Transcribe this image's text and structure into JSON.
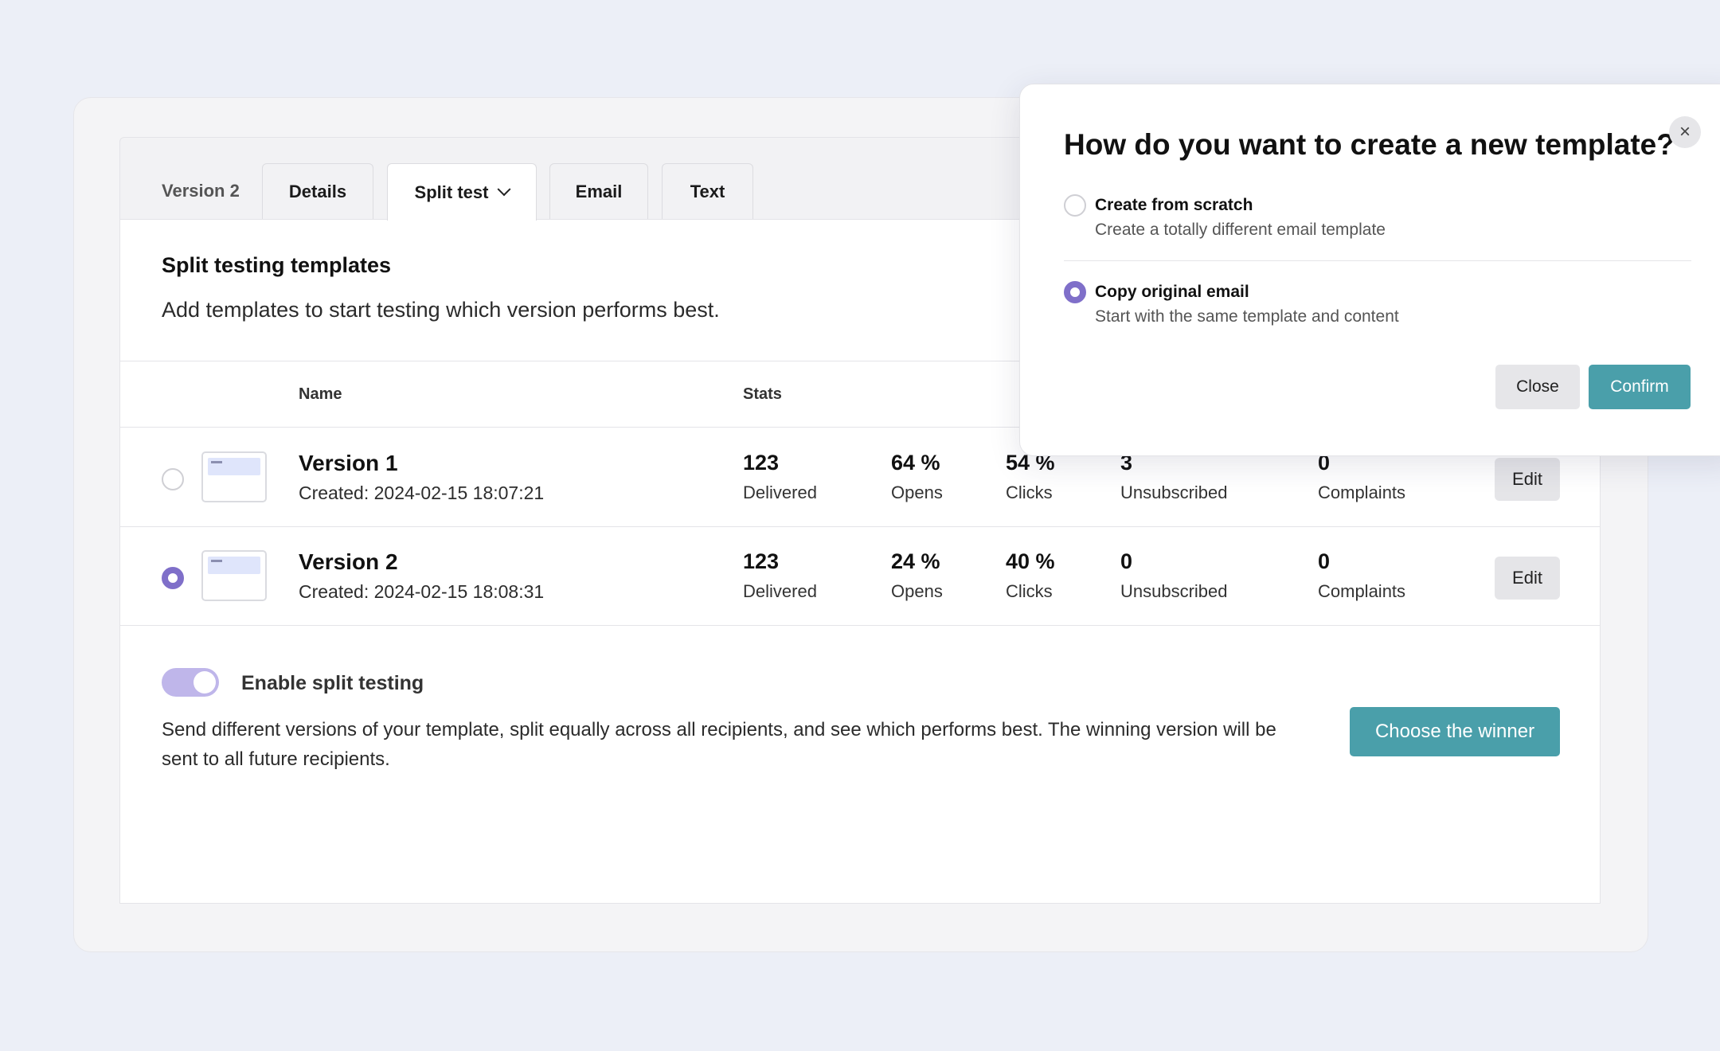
{
  "tabs": {
    "version": "Version 2",
    "details": "Details",
    "split_test": "Split test",
    "email": "Email",
    "text": "Text"
  },
  "card": {
    "title": "Split testing templates",
    "subtitle": "Add templates to start testing which version performs best."
  },
  "table": {
    "headers": {
      "name": "Name",
      "stats": "Stats"
    },
    "rows": [
      {
        "name": "Version 1",
        "created": "Created: 2024-02-15 18:07:21",
        "selected": false,
        "delivered": "123",
        "delivered_label": "Delivered",
        "opens": "64 %",
        "opens_label": "Opens",
        "clicks": "54 %",
        "clicks_label": "Clicks",
        "unsubscribed": "3",
        "unsubscribed_label": "Unsubscribed",
        "complaints": "0",
        "complaints_label": "Complaints",
        "edit_label": "Edit"
      },
      {
        "name": "Version 2",
        "created": "Created: 2024-02-15 18:08:31",
        "selected": true,
        "delivered": "123",
        "delivered_label": "Delivered",
        "opens": "24 %",
        "opens_label": "Opens",
        "clicks": "40 %",
        "clicks_label": "Clicks",
        "unsubscribed": "0",
        "unsubscribed_label": "Unsubscribed",
        "complaints": "0",
        "complaints_label": "Complaints",
        "edit_label": "Edit"
      }
    ]
  },
  "split": {
    "toggle_label": "Enable split testing",
    "enabled": true,
    "description": "Send different versions of your template, split equally across all recipients, and see which performs best. The winning version will be sent to all future recipients.",
    "winner_button": "Choose the winner"
  },
  "modal": {
    "title": "How do you want to create a new template?",
    "options": [
      {
        "title": "Create from scratch",
        "description": "Create a totally different email template",
        "selected": false
      },
      {
        "title": "Copy original email",
        "description": "Start with the same template and content",
        "selected": true
      }
    ],
    "close_label": "Close",
    "confirm_label": "Confirm",
    "close_icon": "×"
  },
  "colors": {
    "accent_teal": "#4a9faa",
    "accent_purple": "#7f6fc9",
    "toggle_track": "#bfb6ea",
    "background": "#eceff7"
  }
}
